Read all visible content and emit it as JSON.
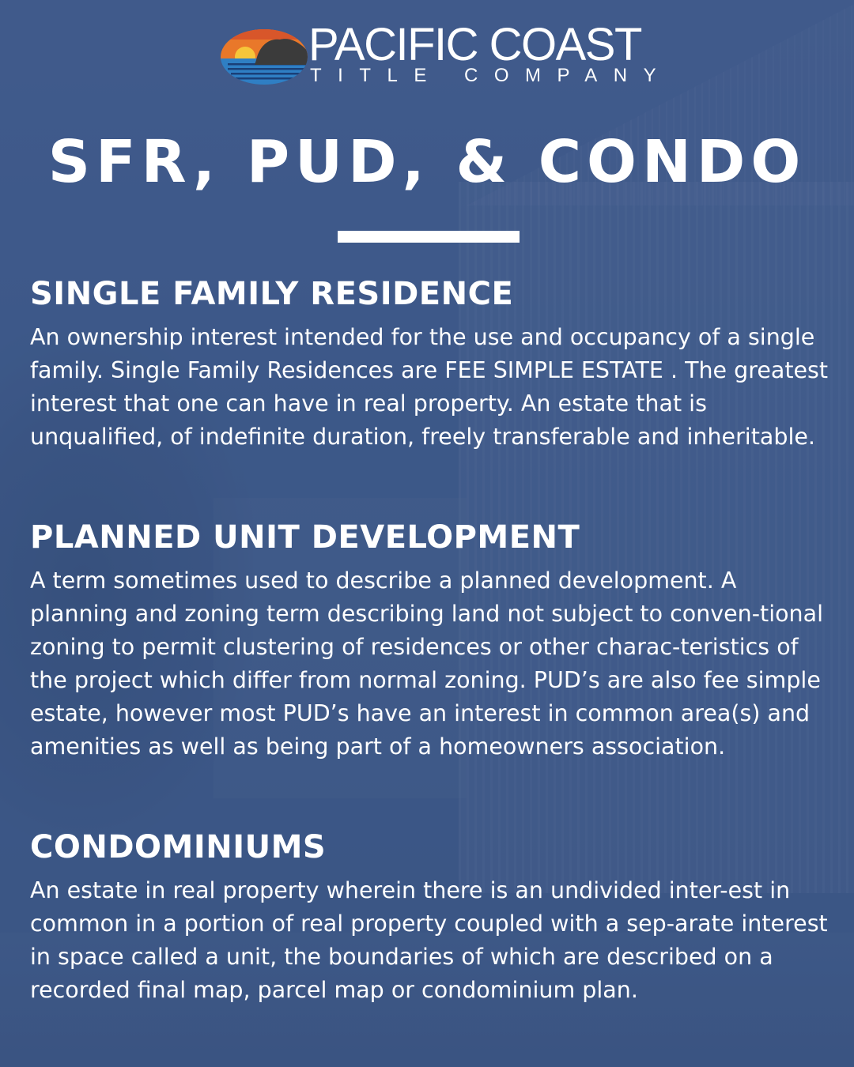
{
  "brand": {
    "name": "PACIFIC COAST",
    "subtitle": "TITLE COMPANY",
    "colors": {
      "sun": "#f6c63a",
      "sky_orange": "#e9782a",
      "sea_blue": "#2f7fc4",
      "rock": "#3b3b3b"
    }
  },
  "title": "SFR, PUD, & CONDO",
  "sections": [
    {
      "heading": "SINGLE FAMILY RESIDENCE",
      "body": "An ownership interest intended for the use and occupancy of a single family. Single Family Residences are FEE SIMPLE ESTATE . The greatest interest that one can have in real property. An estate that is unqualified, of indefinite duration, freely transferable and inheritable."
    },
    {
      "heading": "PLANNED UNIT DEVELOPMENT",
      "body": "A term sometimes used to describe a planned development. A planning and zoning term describing land not subject to conven-tional zoning to permit clustering of residences or other charac-teristics of the project which differ from normal zoning. PUD’s are also fee simple estate, however most PUD’s have an interest in common area(s) and amenities as well as being part of a homeowners association."
    },
    {
      "heading": "CONDOMINIUMS",
      "body": "An estate in real property wherein there is an undivided inter-est in common in a portion of real property coupled with a sep-arate interest in space called a unit, the boundaries of which are described on a recorded final map, parcel map or condominium plan."
    }
  ]
}
